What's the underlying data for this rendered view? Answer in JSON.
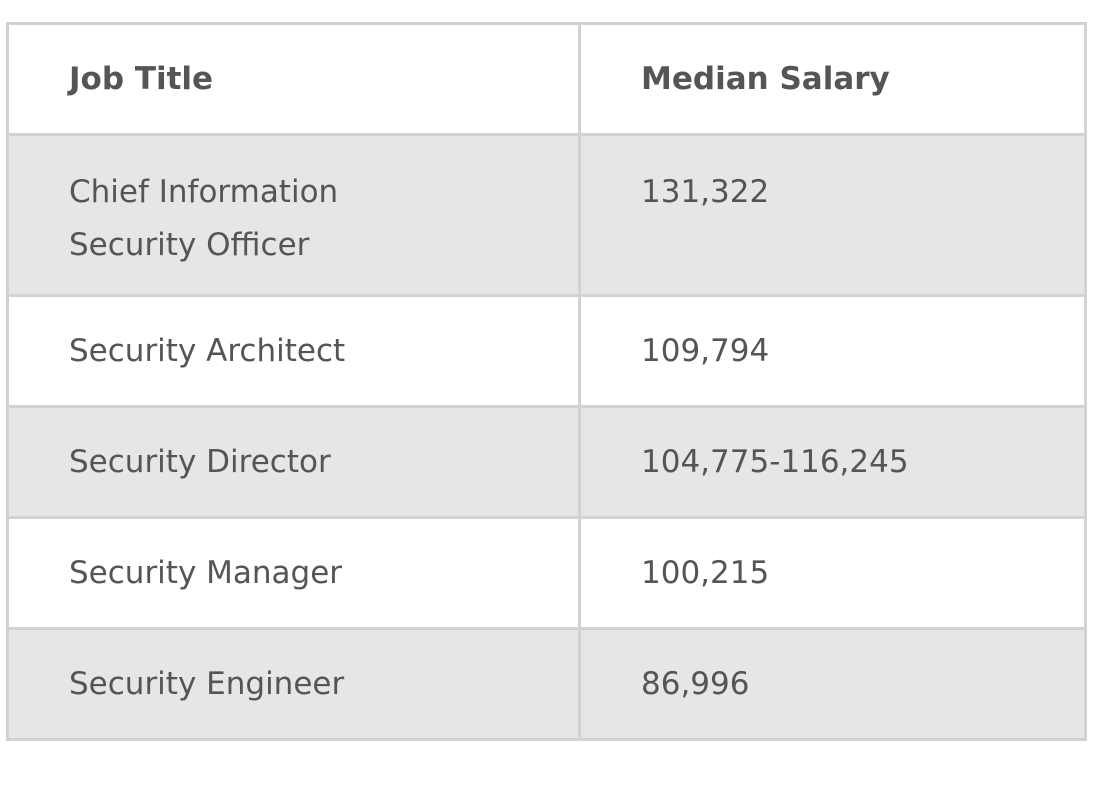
{
  "table": {
    "header": [
      "Job Title",
      "Median Salary"
    ],
    "rows": [
      [
        "Chief Information Security Officer",
        "131,322"
      ],
      [
        "Security Architect",
        "109,794"
      ],
      [
        "Security Director",
        "104,775-116,245"
      ],
      [
        "Security Manager",
        "100,215"
      ],
      [
        "Security Engineer",
        "86,996"
      ]
    ]
  }
}
